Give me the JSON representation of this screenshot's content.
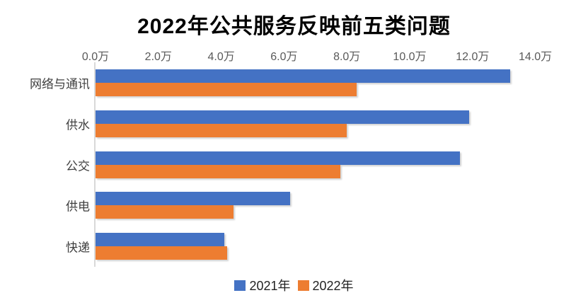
{
  "chart_data": {
    "type": "bar",
    "orientation": "horizontal",
    "title": "2022年公共服务反映前五类问题",
    "categories": [
      "网络与通讯",
      "供水",
      "公交",
      "供电",
      "快递"
    ],
    "series": [
      {
        "name": "2021年",
        "color": "#4472C4",
        "values": [
          13.2,
          11.9,
          11.6,
          6.2,
          4.1
        ]
      },
      {
        "name": "2022年",
        "color": "#ED7D31",
        "values": [
          8.3,
          8.0,
          7.8,
          4.4,
          4.2
        ]
      }
    ],
    "x_ticks": [
      "0.0万",
      "2.0万",
      "4.0万",
      "6.0万",
      "8.0万",
      "10.0万",
      "12.0万",
      "14.0万"
    ],
    "xlim": [
      0,
      14
    ],
    "unit": "万",
    "grid": false,
    "legend_position": "bottom",
    "axis_color": "#D9D9D9",
    "tick_text_color": "#595959",
    "category_text_color": "#404040",
    "title_color": "#000000"
  }
}
